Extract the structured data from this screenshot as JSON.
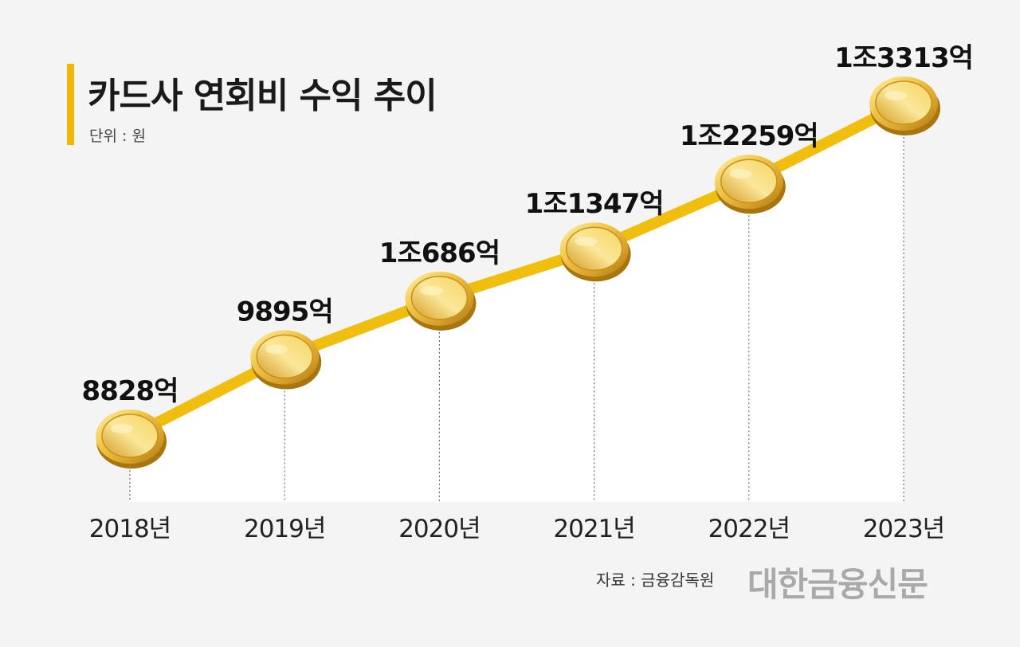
{
  "header": {
    "title": "카드사 연회비 수익 추이",
    "unit": "단위 : 원"
  },
  "footer": {
    "source": "자료 : 금융감독원",
    "logo": "대한금융신문"
  },
  "colors": {
    "background": "#f4f4f4",
    "accent_bar": "#f2b705",
    "line": "#f0be0e",
    "coin_light": "#fbe486",
    "coin_mid": "#e3b130",
    "coin_dark": "#a8760e",
    "area_fill": "#ffffff"
  },
  "chart_data": {
    "type": "line",
    "title": "카드사 연회비 수익 추이",
    "unit": "단위 : 원",
    "categories": [
      "2018년",
      "2019년",
      "2020년",
      "2021년",
      "2022년",
      "2023년"
    ],
    "values": [
      8828,
      9895,
      10686,
      11347,
      12259,
      13313
    ],
    "value_unit": "억원",
    "data_labels": [
      "8828억",
      "9895억",
      "1조686억",
      "1조1347억",
      "1조2259억",
      "1조3313억"
    ],
    "marker": "gold-coin",
    "grid": false,
    "legend": "none"
  }
}
